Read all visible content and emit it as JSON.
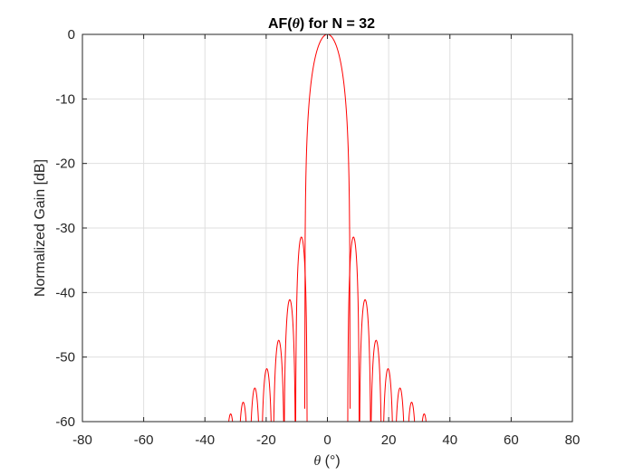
{
  "chart_data": {
    "type": "line",
    "title_prefix": "AF(",
    "title_symbol": "θ",
    "title_suffix": ") for N = 32",
    "xlabel_symbol": "θ",
    "xlabel_unit": " (°)",
    "ylabel": "Normalized Gain [dB]",
    "xlim": [
      -80,
      80
    ],
    "ylim": [
      -60,
      0
    ],
    "xticks": [
      -80,
      -60,
      -40,
      -20,
      0,
      20,
      40,
      60,
      80
    ],
    "yticks": [
      0,
      -10,
      -20,
      -30,
      -40,
      -50,
      -60
    ],
    "xtick_labels": [
      "-80",
      "-60",
      "-40",
      "-20",
      "0",
      "20",
      "40",
      "60",
      "80"
    ],
    "ytick_labels": [
      "0",
      "-10",
      "-20",
      "-30",
      "-40",
      "-50",
      "-60"
    ],
    "grid": true,
    "series": [
      {
        "color": "#ff0000",
        "main_lobe": {
          "peak_theta": 0,
          "peak_db": 0,
          "first_nulls": [
            -7.4,
            7.4
          ],
          "null_depth_db": -58
        },
        "side_lobes": [
          {
            "theta": -31.6,
            "db": -58.8
          },
          {
            "theta": -27.5,
            "db": -57.0
          },
          {
            "theta": -23.7,
            "db": -54.8
          },
          {
            "theta": -19.8,
            "db": -51.8
          },
          {
            "theta": -15.9,
            "db": -47.4
          },
          {
            "theta": -12.3,
            "db": -41.1
          },
          {
            "theta": -8.5,
            "db": -31.4
          },
          {
            "theta": 8.5,
            "db": -31.4
          },
          {
            "theta": 12.3,
            "db": -41.1
          },
          {
            "theta": 15.9,
            "db": -47.4
          },
          {
            "theta": 19.8,
            "db": -51.8
          },
          {
            "theta": 23.7,
            "db": -54.8
          },
          {
            "theta": 27.5,
            "db": -57.0
          },
          {
            "theta": 31.6,
            "db": -58.8
          }
        ]
      }
    ]
  }
}
